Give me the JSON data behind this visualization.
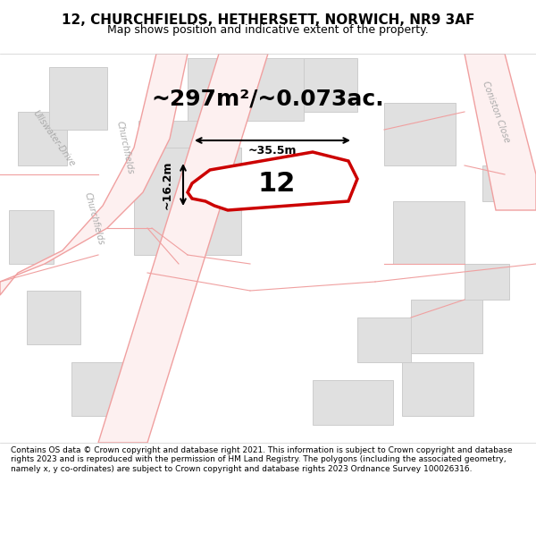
{
  "title_line1": "12, CHURCHFIELDS, HETHERSETT, NORWICH, NR9 3AF",
  "title_line2": "Map shows position and indicative extent of the property.",
  "area_text": "~297m²/~0.073ac.",
  "number_label": "12",
  "dim_width": "~35.5m",
  "dim_height": "~16.2m",
  "footer_text": "Contains OS data © Crown copyright and database right 2021. This information is subject to Crown copyright and database rights 2023 and is reproduced with the permission of HM Land Registry. The polygons (including the associated geometry, namely x, y co-ordinates) are subject to Crown copyright and database rights 2023 Ordnance Survey 100026316.",
  "map_bg": "#f5f5f5",
  "road_color": "#f0a0a0",
  "building_color": "#e0e0e0",
  "building_edge": "#cccccc",
  "highlight_color": "#cc0000",
  "highlight_fill": "#ffffff",
  "road_fill": "#ffffff",
  "title_bg": "#ffffff",
  "footer_bg": "#ffffff",
  "map_border": "#999999"
}
